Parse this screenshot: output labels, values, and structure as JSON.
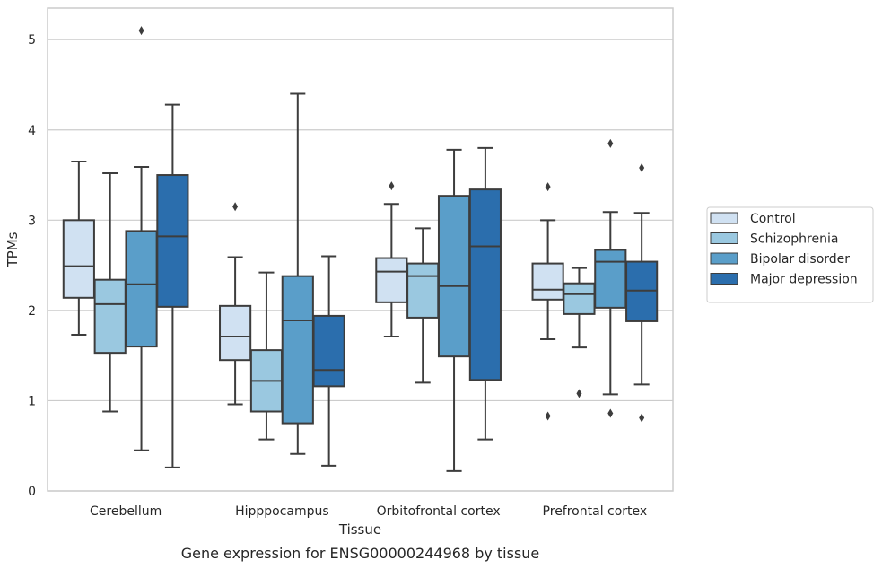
{
  "chart_data": {
    "type": "box",
    "title": "",
    "caption": "Gene expression for ENSG00000244968 by tissue",
    "xlabel": "Tissue",
    "ylabel": "TPMs",
    "ylim": [
      0,
      5.35
    ],
    "yticks": [
      "0",
      "1",
      "2",
      "3",
      "4",
      "5"
    ],
    "grid": "horizontal",
    "legend_position": "right",
    "categories": [
      "Cerebellum",
      "Hipppocampus",
      "Orbitofrontal cortex",
      "Prefrontal cortex"
    ],
    "series": [
      {
        "name": "Control",
        "color": "#d0e1f2",
        "boxes": [
          {
            "whislo": 1.73,
            "q1": 2.14,
            "med": 2.49,
            "q3": 3.0,
            "whishi": 3.65,
            "fliers": []
          },
          {
            "whislo": 0.96,
            "q1": 1.45,
            "med": 1.71,
            "q3": 2.05,
            "whishi": 2.59,
            "fliers": [
              3.15
            ]
          },
          {
            "whislo": 1.71,
            "q1": 2.09,
            "med": 2.43,
            "q3": 2.58,
            "whishi": 3.18,
            "fliers": [
              3.38
            ]
          },
          {
            "whislo": 1.68,
            "q1": 2.12,
            "med": 2.23,
            "q3": 2.52,
            "whishi": 3.0,
            "fliers": [
              3.37,
              0.83
            ]
          }
        ]
      },
      {
        "name": "Schizophrenia",
        "color": "#9ac8e0",
        "boxes": [
          {
            "whislo": 0.88,
            "q1": 1.53,
            "med": 2.07,
            "q3": 2.34,
            "whishi": 3.52,
            "fliers": []
          },
          {
            "whislo": 0.57,
            "q1": 0.88,
            "med": 1.22,
            "q3": 1.56,
            "whishi": 2.42,
            "fliers": []
          },
          {
            "whislo": 1.2,
            "q1": 1.92,
            "med": 2.38,
            "q3": 2.52,
            "whishi": 2.91,
            "fliers": []
          },
          {
            "whislo": 1.59,
            "q1": 1.96,
            "med": 2.18,
            "q3": 2.3,
            "whishi": 2.47,
            "fliers": [
              1.08
            ]
          }
        ]
      },
      {
        "name": "Bipolar disorder",
        "color": "#5a9ec9",
        "boxes": [
          {
            "whislo": 0.45,
            "q1": 1.6,
            "med": 2.29,
            "q3": 2.88,
            "whishi": 3.59,
            "fliers": [
              5.1
            ]
          },
          {
            "whislo": 0.41,
            "q1": 0.75,
            "med": 1.89,
            "q3": 2.38,
            "whishi": 4.4,
            "fliers": []
          },
          {
            "whislo": 0.22,
            "q1": 1.49,
            "med": 2.27,
            "q3": 3.27,
            "whishi": 3.78,
            "fliers": []
          },
          {
            "whislo": 1.07,
            "q1": 2.03,
            "med": 2.54,
            "q3": 2.67,
            "whishi": 3.09,
            "fliers": [
              3.85,
              0.86
            ]
          }
        ]
      },
      {
        "name": "Major depression",
        "color": "#2b6ead",
        "boxes": [
          {
            "whislo": 0.26,
            "q1": 2.04,
            "med": 2.82,
            "q3": 3.5,
            "whishi": 4.28,
            "fliers": []
          },
          {
            "whislo": 0.28,
            "q1": 1.16,
            "med": 1.34,
            "q3": 1.94,
            "whishi": 2.6,
            "fliers": []
          },
          {
            "whislo": 0.57,
            "q1": 1.23,
            "med": 2.71,
            "q3": 3.34,
            "whishi": 3.8,
            "fliers": []
          },
          {
            "whislo": 1.18,
            "q1": 1.88,
            "med": 2.22,
            "q3": 2.54,
            "whishi": 3.08,
            "fliers": [
              3.58,
              0.81
            ]
          }
        ]
      }
    ]
  }
}
